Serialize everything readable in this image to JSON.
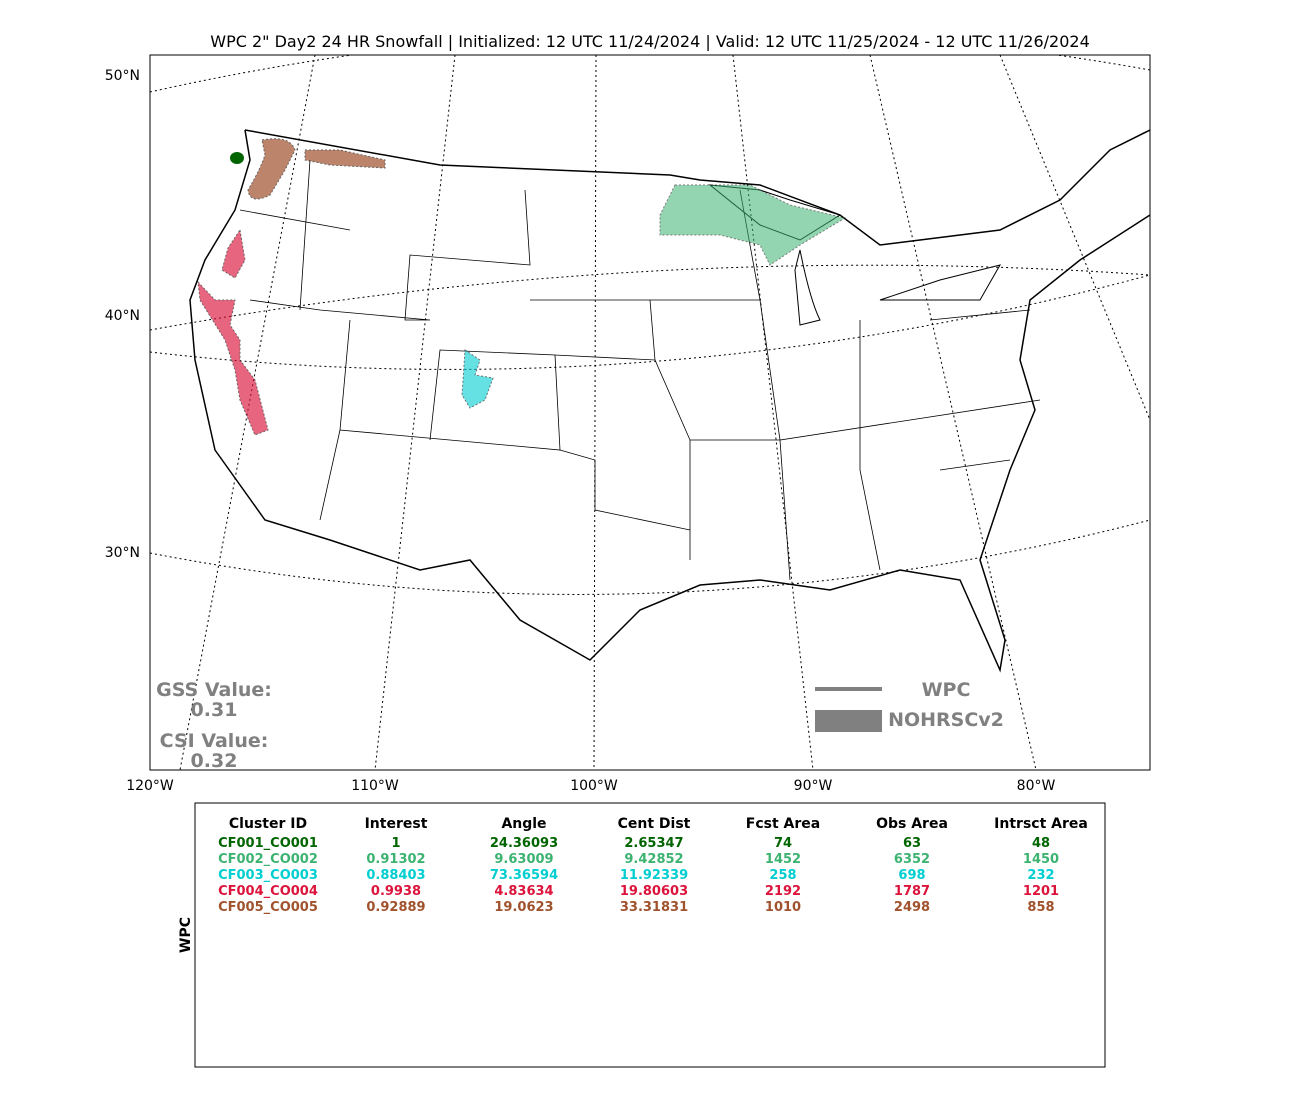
{
  "header": {
    "title": "WPC 2\" Day2 24 HR Snowfall | Initialized: 12 UTC 11/24/2024 | Valid: 12 UTC 11/25/2024 - 12 UTC 11/26/2024"
  },
  "map": {
    "lon_labels": [
      "120°W",
      "110°W",
      "100°W",
      "90°W",
      "80°W"
    ],
    "lat_labels": [
      "50°N",
      "40°N",
      "30°N"
    ],
    "gss": {
      "label": "GSS Value:",
      "value": "0.31"
    },
    "csi": {
      "label": "CSI Value:",
      "value": "0.32"
    },
    "legend": {
      "line": "WPC",
      "area": "NOHRSCv2"
    }
  },
  "table": {
    "side_label": "WPC",
    "headers": [
      "Cluster ID",
      "Interest",
      "Angle",
      "Cent Dist",
      "Fcst Area",
      "Obs Area",
      "Intrsct Area"
    ],
    "rows": [
      {
        "color": "#006400",
        "cells": [
          "CF001_CO001",
          "1",
          "24.36093",
          "2.65347",
          "74",
          "63",
          "48"
        ]
      },
      {
        "color": "#3cb371",
        "cells": [
          "CF002_CO002",
          "0.91302",
          "9.63009",
          "9.42852",
          "1452",
          "6352",
          "1450"
        ]
      },
      {
        "color": "#00ced1",
        "cells": [
          "CF003_CO003",
          "0.88403",
          "73.36594",
          "11.92339",
          "258",
          "698",
          "232"
        ]
      },
      {
        "color": "#dc143c",
        "cells": [
          "CF004_CO004",
          "0.9938",
          "4.83634",
          "19.80603",
          "2192",
          "1787",
          "1201"
        ]
      },
      {
        "color": "#a0522d",
        "cells": [
          "CF005_CO005",
          "0.92889",
          "19.0623",
          "33.31831",
          "1010",
          "2498",
          "858"
        ]
      }
    ]
  }
}
